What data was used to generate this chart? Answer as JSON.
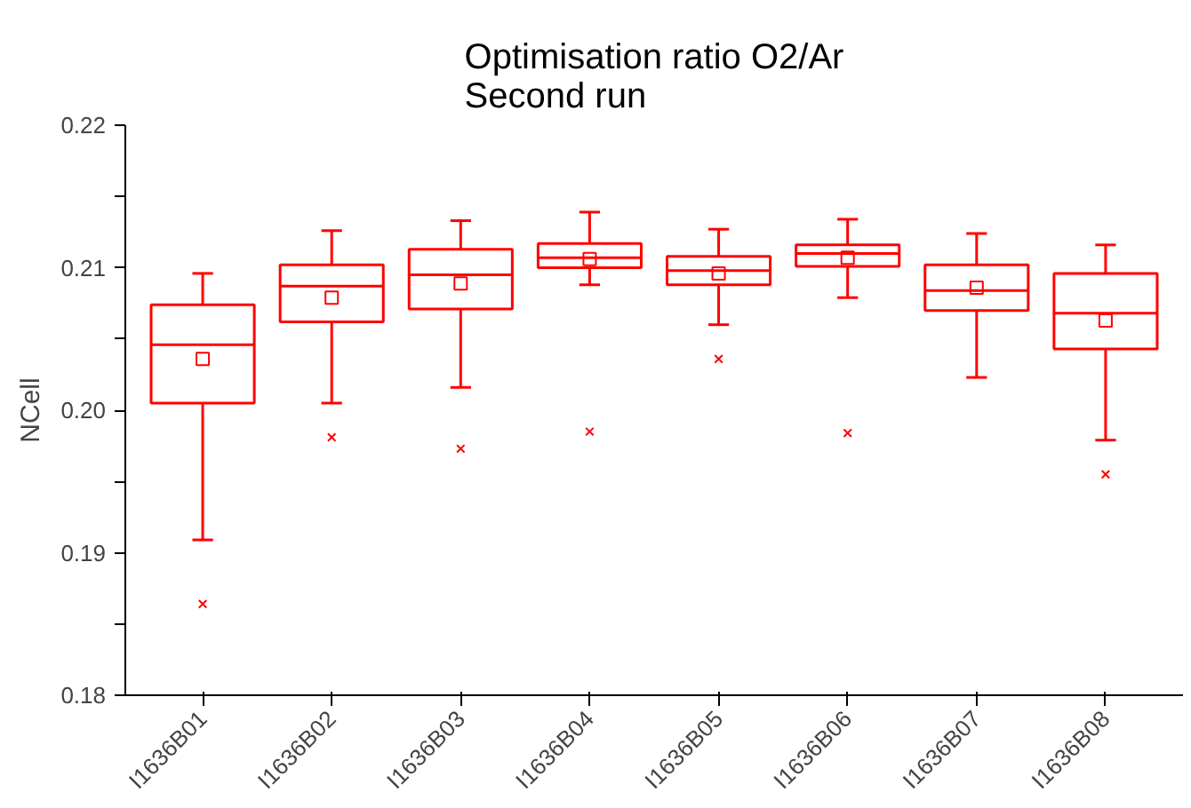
{
  "chart_data": {
    "type": "box",
    "title": "Optimisation ratio O2/Ar\nSecond run",
    "ylabel": "NCell",
    "categories": [
      "I1636B01",
      "I1636B02",
      "I1636B03",
      "I1636B04",
      "I1636B05",
      "I1636B06",
      "I1636B07",
      "I1636B08"
    ],
    "color": "#ff0000",
    "boxes": [
      {
        "low": 0.1909,
        "q1": 0.2005,
        "median": 0.2046,
        "q3": 0.2074,
        "high": 0.2096,
        "mean": 0.2036,
        "outliers": [
          0.1864
        ]
      },
      {
        "low": 0.2005,
        "q1": 0.2062,
        "median": 0.2087,
        "q3": 0.2102,
        "high": 0.2126,
        "mean": 0.2079,
        "outliers": [
          0.1981
        ]
      },
      {
        "low": 0.2016,
        "q1": 0.2071,
        "median": 0.2095,
        "q3": 0.2113,
        "high": 0.2133,
        "mean": 0.2089,
        "outliers": [
          0.1973
        ]
      },
      {
        "low": 0.2088,
        "q1": 0.21,
        "median": 0.2107,
        "q3": 0.2117,
        "high": 0.2139,
        "mean": 0.2106,
        "outliers": [
          0.1985
        ]
      },
      {
        "low": 0.206,
        "q1": 0.2088,
        "median": 0.2098,
        "q3": 0.2108,
        "high": 0.2127,
        "mean": 0.2096,
        "outliers": [
          0.2036
        ]
      },
      {
        "low": 0.2079,
        "q1": 0.2101,
        "median": 0.211,
        "q3": 0.2116,
        "high": 0.2134,
        "mean": 0.2107,
        "outliers": [
          0.1984
        ]
      },
      {
        "low": 0.2023,
        "q1": 0.207,
        "median": 0.2084,
        "q3": 0.2102,
        "high": 0.2124,
        "mean": 0.2086
      },
      {
        "low": 0.1979,
        "q1": 0.2043,
        "median": 0.2068,
        "q3": 0.2096,
        "high": 0.2116,
        "mean": 0.2063,
        "outliers": [
          0.1955
        ]
      }
    ],
    "ylim": [
      0.18,
      0.22
    ],
    "yticks": [
      0.18,
      {
        "value": 0.185,
        "label": null
      },
      0.19,
      {
        "value": 0.195,
        "label": null
      },
      {
        "value": 0.2,
        "label": "0.20"
      },
      {
        "value": 0.205,
        "label": null
      },
      0.21,
      {
        "value": 0.215,
        "label": null
      },
      0.22
    ],
    "grid": false
  }
}
